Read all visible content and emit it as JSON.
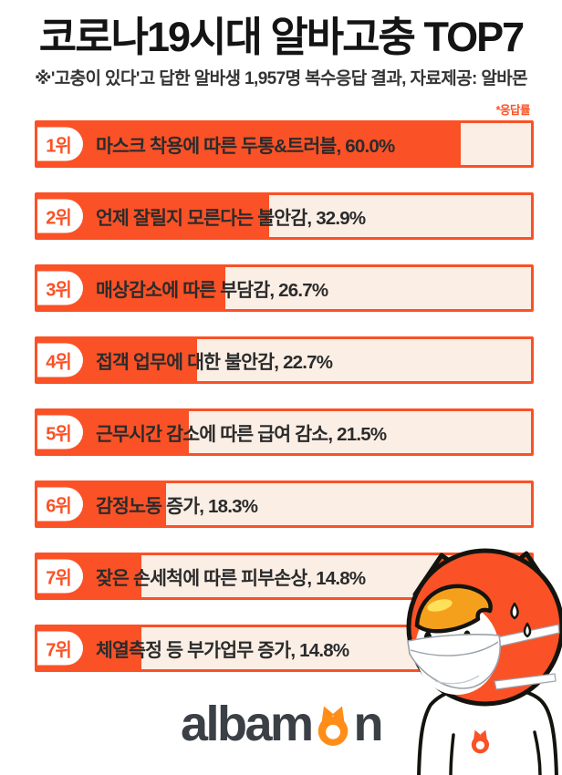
{
  "header": {
    "title": "코로나19시대 알바고충 TOP7",
    "subtitle": "※'고충이 있다'고 답한 알바생 1,957명 복수응답 결과, 자료제공: 알바몬"
  },
  "chart_data": {
    "type": "bar",
    "orientation": "horizontal",
    "title": "코로나19시대 알바고충 TOP7",
    "note": "*응답률",
    "unit": "%",
    "scale_max": 70,
    "items": [
      {
        "rank": "1위",
        "label": "마스크 착용에 따른 두통&트러블",
        "value": 60.0,
        "display": "마스크 착용에 따른 두통&트러블, 60.0%"
      },
      {
        "rank": "2위",
        "label": "언제 잘릴지 모른다는 불안감",
        "value": 32.9,
        "display": "언제 잘릴지 모른다는 불안감, 32.9%"
      },
      {
        "rank": "3위",
        "label": "매상감소에 따른 부담감",
        "value": 26.7,
        "display": "매상감소에 따른 부담감, 26.7%"
      },
      {
        "rank": "4위",
        "label": "접객 업무에 대한 불안감",
        "value": 22.7,
        "display": "접객 업무에 대한 불안감, 22.7%"
      },
      {
        "rank": "5위",
        "label": "근무시간 감소에 따른 급여 감소",
        "value": 21.5,
        "display": "근무시간 감소에 따른 급여 감소, 21.5%"
      },
      {
        "rank": "6위",
        "label": "감정노동 증가",
        "value": 18.3,
        "display": "감정노동 증가, 18.3%"
      },
      {
        "rank": "7위",
        "label": "잦은 손세척에 따른 피부손상",
        "value": 14.8,
        "display": "잦은 손세척에 따른 피부손상, 14.8%"
      },
      {
        "rank": "7위",
        "label": "체열측정 등 부가업무 증가",
        "value": 14.8,
        "display": "체열측정 등 부가업무 증가, 14.8%"
      }
    ]
  },
  "footer": {
    "logo": {
      "name": "albamon",
      "text_before_o": "albam",
      "text_after_o": "n"
    }
  },
  "mascot": {
    "name": "albamon-cat-mascot",
    "description": "orange cat mascot wearing white face mask, sweating"
  },
  "colors": {
    "accent": "#FA5126",
    "bar_background": "#FBEEE5",
    "title_ink": "#141414",
    "logo_dark": "#3B4046",
    "logo_orange": "#FF8D17",
    "hair_orange": "#F5A01D",
    "hair_highlight": "#FFE159"
  }
}
